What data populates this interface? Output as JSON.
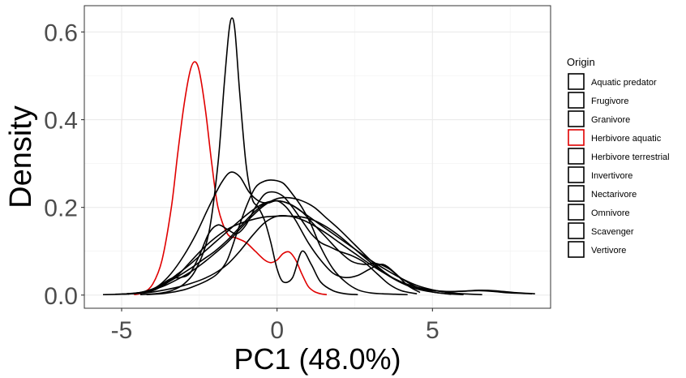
{
  "chart_data": {
    "type": "line",
    "subtype": "density",
    "title": "",
    "xlabel": "PC1 (48.0%)",
    "ylabel": "Density",
    "xlim": [
      -6.2,
      8.8
    ],
    "ylim": [
      -0.03,
      0.66
    ],
    "xticks": [
      -5,
      0,
      5
    ],
    "xtick_labels": [
      "-5",
      "0",
      "5"
    ],
    "yticks": [
      0.0,
      0.2,
      0.4,
      0.6
    ],
    "ytick_labels": [
      "0.0",
      "0.2",
      "0.4",
      "0.6"
    ],
    "grid": true,
    "legend": {
      "title": "Origin",
      "position": "right",
      "entries": [
        {
          "label": "Aquatic predator",
          "color": "#000000"
        },
        {
          "label": "Frugivore",
          "color": "#000000"
        },
        {
          "label": "Granivore",
          "color": "#000000"
        },
        {
          "label": "Herbivore aquatic",
          "color": "#e00000"
        },
        {
          "label": "Herbivore terrestrial",
          "color": "#000000"
        },
        {
          "label": "Invertivore",
          "color": "#000000"
        },
        {
          "label": "Nectarivore",
          "color": "#000000"
        },
        {
          "label": "Omnivore",
          "color": "#000000"
        },
        {
          "label": "Scavenger",
          "color": "#000000"
        },
        {
          "label": "Vertivore",
          "color": "#000000"
        }
      ]
    },
    "series": [
      {
        "name": "Aquatic predator",
        "color": "#000000",
        "x": [
          -5.2,
          -4.5,
          -4.0,
          -3.6,
          -3.2,
          -2.8,
          -2.4,
          -2.0,
          -1.6,
          -1.2,
          -0.8,
          -0.4,
          0.0,
          0.4,
          0.8,
          1.2,
          1.6,
          2.0,
          2.5,
          3.0,
          3.5,
          4.0,
          4.5,
          5.0,
          5.5,
          6.0,
          6.5,
          7.0,
          7.5,
          8.2
        ],
        "y": [
          0.002,
          0.004,
          0.01,
          0.025,
          0.045,
          0.075,
          0.105,
          0.13,
          0.15,
          0.163,
          0.172,
          0.178,
          0.18,
          0.18,
          0.178,
          0.17,
          0.155,
          0.135,
          0.105,
          0.075,
          0.048,
          0.028,
          0.015,
          0.01,
          0.008,
          0.009,
          0.01,
          0.008,
          0.005,
          0.003
        ]
      },
      {
        "name": "Frugivore",
        "color": "#000000",
        "x": [
          -5.0,
          -4.4,
          -4.0,
          -3.6,
          -3.2,
          -2.8,
          -2.4,
          -2.0,
          -1.6,
          -1.2,
          -0.8,
          -0.4,
          0.0,
          0.4,
          0.8,
          1.2,
          1.6,
          2.0,
          2.4,
          2.8,
          3.2,
          3.6,
          4.0,
          4.5,
          5.0,
          5.6
        ],
        "y": [
          0.002,
          0.006,
          0.014,
          0.028,
          0.048,
          0.07,
          0.095,
          0.12,
          0.145,
          0.17,
          0.193,
          0.21,
          0.215,
          0.208,
          0.19,
          0.16,
          0.13,
          0.1,
          0.077,
          0.07,
          0.072,
          0.06,
          0.038,
          0.018,
          0.007,
          0.002
        ]
      },
      {
        "name": "Granivore",
        "color": "#000000",
        "x": [
          -5.0,
          -4.4,
          -4.0,
          -3.7,
          -3.4,
          -3.1,
          -2.8,
          -2.5,
          -2.2,
          -1.9,
          -1.6,
          -1.3,
          -1.0,
          -0.7,
          -0.4,
          -0.1,
          0.2,
          0.5,
          0.8,
          1.1,
          1.4,
          1.7,
          2.0,
          2.4,
          2.8,
          3.2,
          3.6,
          4.0,
          4.5
        ],
        "y": [
          0.002,
          0.005,
          0.013,
          0.025,
          0.038,
          0.04,
          0.05,
          0.09,
          0.14,
          0.16,
          0.15,
          0.14,
          0.16,
          0.2,
          0.23,
          0.235,
          0.225,
          0.2,
          0.17,
          0.14,
          0.12,
          0.11,
          0.1,
          0.09,
          0.075,
          0.05,
          0.025,
          0.01,
          0.003
        ]
      },
      {
        "name": "Herbivore aquatic",
        "color": "#e00000",
        "x": [
          -4.6,
          -4.3,
          -4.0,
          -3.7,
          -3.4,
          -3.2,
          -3.0,
          -2.8,
          -2.65,
          -2.5,
          -2.3,
          -2.1,
          -1.9,
          -1.6,
          -1.3,
          -1.0,
          -0.7,
          -0.4,
          -0.2,
          0.0,
          0.2,
          0.4,
          0.6,
          0.8,
          1.0,
          1.2,
          1.4,
          1.6
        ],
        "y": [
          0.001,
          0.006,
          0.025,
          0.08,
          0.2,
          0.32,
          0.43,
          0.51,
          0.532,
          0.51,
          0.42,
          0.3,
          0.2,
          0.14,
          0.13,
          0.12,
          0.1,
          0.08,
          0.074,
          0.08,
          0.095,
          0.098,
          0.08,
          0.048,
          0.02,
          0.008,
          0.003,
          0.001
        ]
      },
      {
        "name": "Herbivore terrestrial",
        "color": "#000000",
        "x": [
          -4.8,
          -4.2,
          -3.8,
          -3.4,
          -3.0,
          -2.6,
          -2.2,
          -1.8,
          -1.5,
          -1.2,
          -0.9,
          -0.6,
          -0.3,
          0.0,
          0.3,
          0.6,
          1.0,
          1.4,
          1.8,
          2.2,
          2.6,
          3.0,
          3.4,
          3.8,
          4.2,
          4.6
        ],
        "y": [
          0.002,
          0.008,
          0.022,
          0.05,
          0.09,
          0.14,
          0.2,
          0.255,
          0.28,
          0.27,
          0.235,
          0.215,
          0.21,
          0.215,
          0.2,
          0.17,
          0.12,
          0.08,
          0.05,
          0.04,
          0.045,
          0.06,
          0.07,
          0.05,
          0.022,
          0.006
        ]
      },
      {
        "name": "Invertivore",
        "color": "#000000",
        "x": [
          -5.0,
          -4.4,
          -4.0,
          -3.6,
          -3.2,
          -2.8,
          -2.4,
          -2.0,
          -1.6,
          -1.2,
          -0.8,
          -0.4,
          0.0,
          0.4,
          0.8,
          1.2,
          1.6,
          2.0,
          2.5,
          3.0,
          3.5,
          4.0,
          4.5,
          5.0,
          5.5,
          6.0,
          6.6
        ],
        "y": [
          0.002,
          0.006,
          0.014,
          0.026,
          0.042,
          0.06,
          0.08,
          0.1,
          0.125,
          0.155,
          0.185,
          0.208,
          0.215,
          0.208,
          0.19,
          0.17,
          0.15,
          0.13,
          0.105,
          0.08,
          0.058,
          0.038,
          0.022,
          0.012,
          0.006,
          0.003,
          0.001
        ]
      },
      {
        "name": "Nectarivore",
        "color": "#000000",
        "x": [
          -4.2,
          -3.6,
          -3.0,
          -2.6,
          -2.2,
          -1.9,
          -1.6,
          -1.3,
          -1.0,
          -0.7,
          -0.4,
          -0.1,
          0.2,
          0.5,
          0.8,
          1.1,
          1.4,
          1.8,
          2.2,
          2.6,
          3.0,
          3.4,
          3.8,
          4.2
        ],
        "y": [
          0.001,
          0.004,
          0.012,
          0.022,
          0.035,
          0.05,
          0.08,
          0.14,
          0.2,
          0.245,
          0.26,
          0.262,
          0.255,
          0.23,
          0.2,
          0.16,
          0.11,
          0.06,
          0.03,
          0.012,
          0.005,
          0.003,
          0.002,
          0.001
        ]
      },
      {
        "name": "Omnivore",
        "color": "#000000",
        "x": [
          -5.0,
          -4.4,
          -4.0,
          -3.6,
          -3.2,
          -2.8,
          -2.4,
          -2.0,
          -1.6,
          -1.2,
          -0.8,
          -0.4,
          0.0,
          0.4,
          0.8,
          1.2,
          1.6,
          2.0,
          2.5,
          3.0,
          3.5,
          4.0,
          4.5,
          5.0,
          5.5,
          6.0
        ],
        "y": [
          0.002,
          0.005,
          0.012,
          0.022,
          0.036,
          0.052,
          0.072,
          0.095,
          0.12,
          0.15,
          0.18,
          0.205,
          0.22,
          0.222,
          0.215,
          0.2,
          0.175,
          0.15,
          0.115,
          0.08,
          0.05,
          0.028,
          0.014,
          0.007,
          0.003,
          0.001
        ]
      },
      {
        "name": "Scavenger",
        "color": "#000000",
        "x": [
          -4.4,
          -3.8,
          -3.4,
          -3.0,
          -2.6,
          -2.2,
          -1.9,
          -1.7,
          -1.55,
          -1.45,
          -1.35,
          -1.2,
          -1.0,
          -0.8,
          -0.6,
          -0.4,
          -0.2,
          0.0,
          0.2,
          0.5,
          0.8,
          1.1,
          1.4,
          1.8,
          2.2,
          2.6
        ],
        "y": [
          0.001,
          0.004,
          0.01,
          0.025,
          0.06,
          0.14,
          0.3,
          0.48,
          0.6,
          0.632,
          0.6,
          0.46,
          0.3,
          0.22,
          0.2,
          0.17,
          0.12,
          0.06,
          0.03,
          0.04,
          0.1,
          0.07,
          0.03,
          0.01,
          0.003,
          0.001
        ]
      },
      {
        "name": "Vertivore",
        "color": "#000000",
        "x": [
          -5.6,
          -5.0,
          -4.4,
          -4.0,
          -3.6,
          -3.2,
          -2.8,
          -2.4,
          -2.0,
          -1.6,
          -1.2,
          -0.8,
          -0.4,
          0.0,
          0.4,
          0.8,
          1.2,
          1.6,
          2.0,
          2.5,
          3.0,
          3.5,
          4.0,
          4.5,
          5.0,
          5.5,
          6.0,
          6.5,
          7.0,
          7.6,
          8.3
        ],
        "y": [
          0.001,
          0.002,
          0.004,
          0.007,
          0.012,
          0.018,
          0.026,
          0.036,
          0.05,
          0.07,
          0.1,
          0.135,
          0.165,
          0.18,
          0.18,
          0.172,
          0.158,
          0.14,
          0.12,
          0.095,
          0.07,
          0.048,
          0.03,
          0.018,
          0.011,
          0.008,
          0.009,
          0.011,
          0.01,
          0.006,
          0.003
        ]
      }
    ]
  }
}
